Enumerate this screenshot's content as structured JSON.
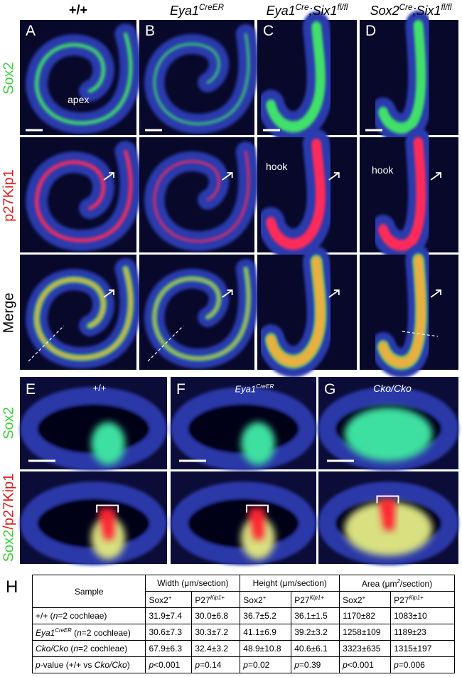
{
  "figure": {
    "column_headers": [
      "+/+",
      [
        {
          "i": "Eya1"
        },
        {
          "sup": "CreER"
        }
      ],
      [
        {
          "i": "Eya1"
        },
        {
          "sup": "Cre"
        },
        {
          "i": ";Six1"
        },
        {
          "sup": "fl/fl"
        }
      ],
      [
        {
          "i": "Sox2"
        },
        {
          "sup": "Cre"
        },
        {
          "i": ";Six1"
        },
        {
          "sup": "fl/fl"
        }
      ]
    ],
    "row_labels": [
      "Sox2",
      "p27Kip1",
      "Merge"
    ],
    "panel_letters": [
      "A",
      "B",
      "C",
      "D"
    ],
    "annotations": {
      "apex": "apex",
      "hook_c": "hook",
      "hook_d": "hook"
    },
    "bottom_letters": [
      "E",
      "F",
      "G"
    ],
    "bottom_labels": [
      "+/+",
      [
        {
          "i": "Eya1"
        },
        {
          "sup": "CreER"
        }
      ],
      [
        {
          "i": "Cko/Cko"
        }
      ]
    ],
    "bottom_row_labels": [
      "Sox2",
      [
        "Sox2",
        "/p27Kip1"
      ]
    ]
  },
  "table": {
    "label": "H",
    "sample_header": "Sample",
    "groups": [
      [
        "Width (",
        "μm/section)"
      ],
      [
        "Height (",
        "μm/section)"
      ],
      [
        "Area (μm",
        {
          "sup": "2"
        },
        "/section)"
      ]
    ],
    "subheaders": [
      [
        "Sox2",
        {
          "sup": "+"
        }
      ],
      [
        "P27",
        {
          "sup": "Kip1+"
        }
      ],
      [
        "Sox2",
        {
          "sup": "+"
        }
      ],
      [
        "P27",
        {
          "sup": "Kip1+"
        }
      ],
      [
        "Sox2",
        {
          "sup": "+"
        }
      ],
      [
        "P27",
        {
          "sup": "Kip1+"
        }
      ]
    ],
    "rows": [
      [
        [
          "+/+ (",
          {
            "i": "n"
          },
          "=2 cochleae)"
        ],
        "31.9±7.4",
        "30.0±6.8",
        "36.7±5.2",
        "36.1±1.5",
        "1170±82",
        "1083±10"
      ],
      [
        [
          {
            "i": "Eya1"
          },
          {
            "sup": "CreER"
          },
          " (",
          {
            "i": "n"
          },
          "=2 cochleae)"
        ],
        "30.6±7.3",
        "30.3±7.2",
        "41.1±6.9",
        "39.2±3.2",
        "1258±109",
        "1189±23"
      ],
      [
        [
          {
            "i": "Cko/Cko"
          },
          " (",
          {
            "i": "n"
          },
          "=2 cochleae)"
        ],
        "67.9±6.3",
        "32.4±3.2",
        "48.9±10.8",
        "40.6±6.1",
        "3323±635",
        "1315±197"
      ],
      [
        [
          {
            "i": "p"
          },
          "-value (+/+ vs ",
          {
            "i": "Cko/Cko"
          },
          ")"
        ],
        [
          {
            "i": "p"
          },
          "<0.001"
        ],
        [
          {
            "i": "p"
          },
          "=0.14"
        ],
        [
          {
            "i": "p"
          },
          "=0.02"
        ],
        [
          {
            "i": "p"
          },
          "=0.39"
        ],
        [
          {
            "i": "p"
          },
          "<0.001"
        ],
        [
          {
            "i": "p"
          },
          "=0.006"
        ]
      ]
    ]
  }
}
